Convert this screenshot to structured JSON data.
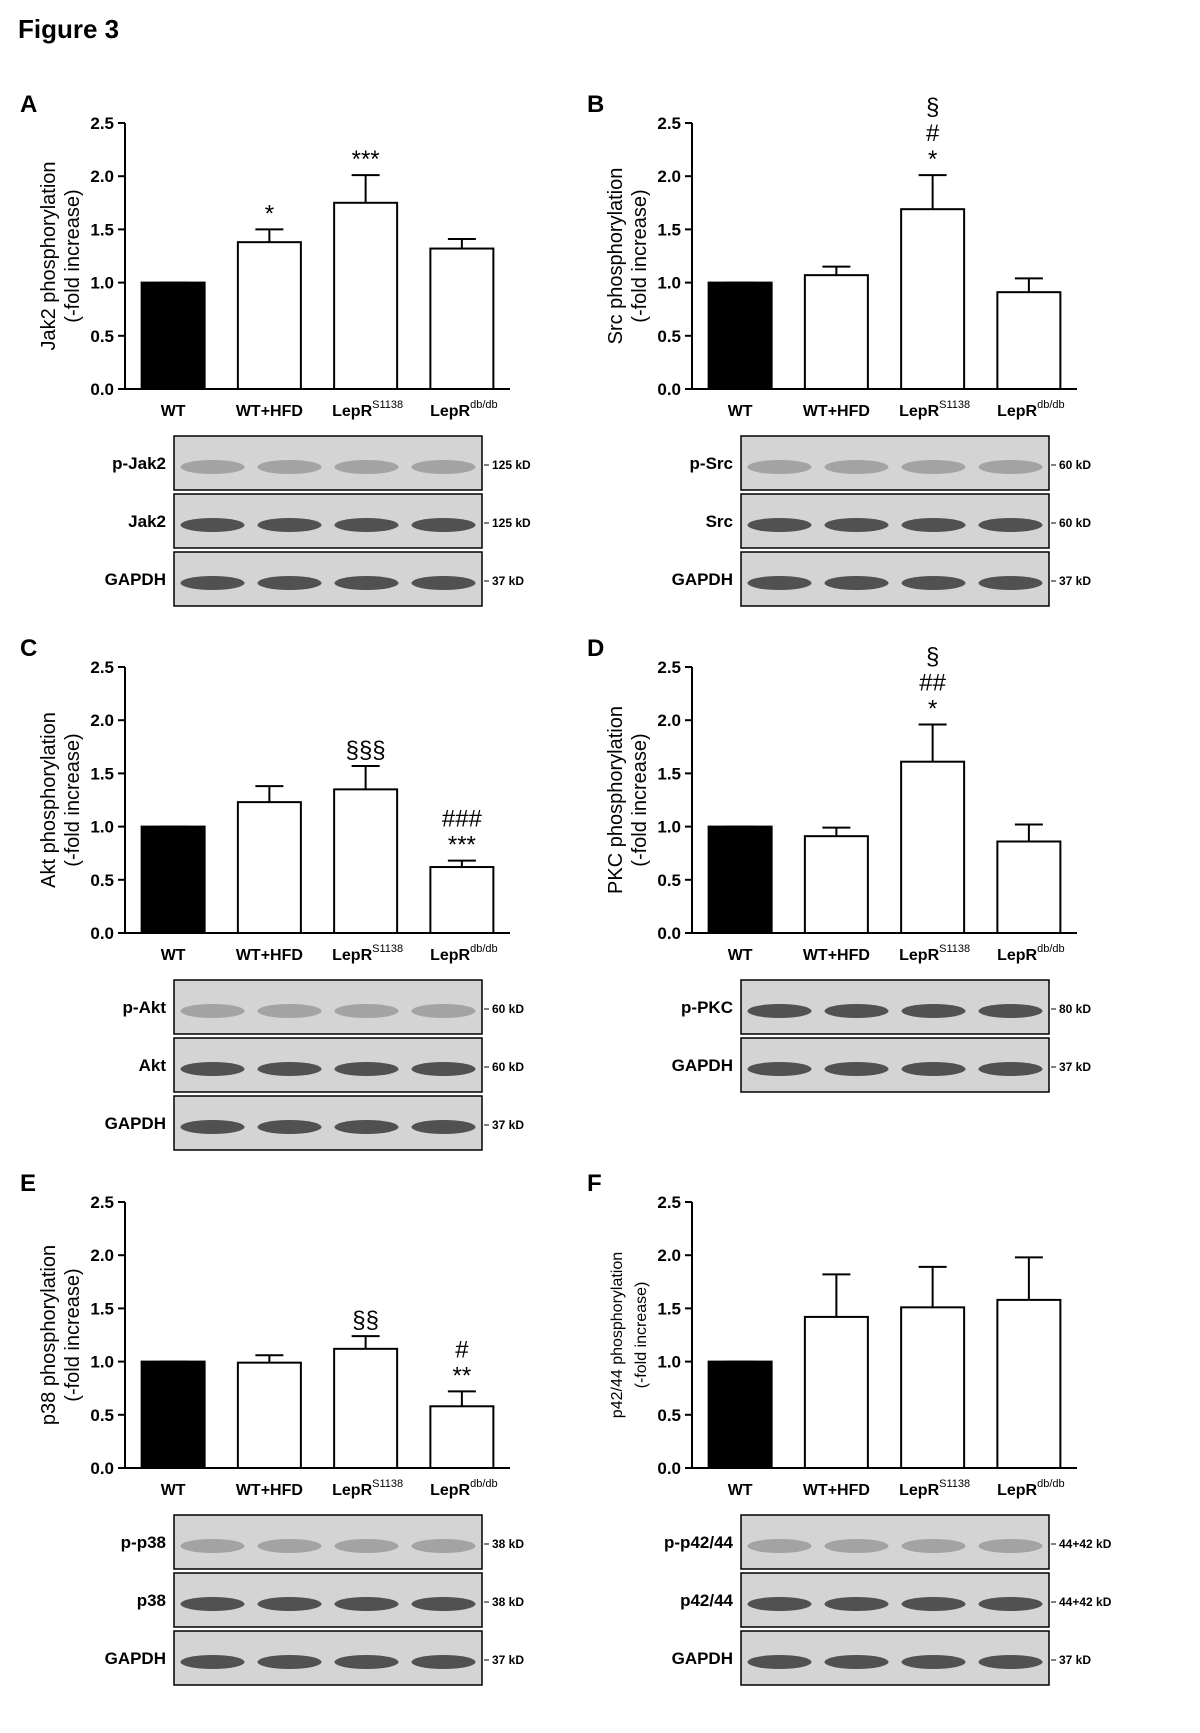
{
  "figure_title": "Figure 3",
  "chart_data": [
    {
      "type": "bar",
      "panel": "A",
      "ylabel": [
        "Jak2 phosphorylation",
        "(-fold increase)"
      ],
      "categories": [
        {
          "label": "WT"
        },
        {
          "label": "WT+HFD"
        },
        {
          "label": "LepR",
          "sup": "S1138"
        },
        {
          "label": "LepR",
          "sup": "db/db"
        }
      ],
      "values": [
        1.0,
        1.38,
        1.75,
        1.32
      ],
      "errors": [
        0,
        0.12,
        0.26,
        0.09
      ],
      "bar_colors": [
        "#000000",
        "#ffffff",
        "#ffffff",
        "#ffffff"
      ],
      "ylim": [
        0,
        2.5
      ],
      "yticks": [
        {
          "value": 0,
          "label": "0.0"
        },
        0.5,
        {
          "value": 1,
          "label": "1.0"
        },
        1.5,
        {
          "value": 2,
          "label": "2.0"
        },
        2.5
      ],
      "annotations": [
        {
          "index": 1,
          "lines": [
            "*"
          ]
        },
        {
          "index": 2,
          "lines": [
            "***"
          ]
        }
      ],
      "blots": [
        {
          "label": "p-Jak2",
          "size": "125 kD"
        },
        {
          "label": "Jak2",
          "size": "125 kD"
        },
        {
          "label": "GAPDH",
          "size": "37 kD"
        }
      ]
    },
    {
      "type": "bar",
      "panel": "B",
      "ylabel": [
        "Src phosphorylation",
        "(-fold increase)"
      ],
      "categories": [
        {
          "label": "WT"
        },
        {
          "label": "WT+HFD"
        },
        {
          "label": "LepR",
          "sup": "S1138"
        },
        {
          "label": "LepR",
          "sup": "db/db"
        }
      ],
      "values": [
        1.0,
        1.07,
        1.69,
        0.91
      ],
      "errors": [
        0,
        0.08,
        0.32,
        0.13
      ],
      "bar_colors": [
        "#000000",
        "#ffffff",
        "#ffffff",
        "#ffffff"
      ],
      "ylim": [
        0,
        2.5
      ],
      "yticks": [
        {
          "value": 0,
          "label": "0.0"
        },
        0.5,
        {
          "value": 1,
          "label": "1.0"
        },
        1.5,
        {
          "value": 2,
          "label": "2.0"
        },
        2.5
      ],
      "annotations": [
        {
          "index": 2,
          "lines": [
            "§",
            "#",
            "*"
          ]
        }
      ],
      "blots": [
        {
          "label": "p-Src",
          "size": "60 kD"
        },
        {
          "label": "Src",
          "size": "60 kD"
        },
        {
          "label": "GAPDH",
          "size": "37 kD"
        }
      ]
    },
    {
      "type": "bar",
      "panel": "C",
      "ylabel": [
        "Akt phosphorylation",
        "(-fold increase)"
      ],
      "categories": [
        {
          "label": "WT"
        },
        {
          "label": "WT+HFD"
        },
        {
          "label": "LepR",
          "sup": "S1138"
        },
        {
          "label": "LepR",
          "sup": "db/db"
        }
      ],
      "values": [
        1.0,
        1.23,
        1.35,
        0.62
      ],
      "errors": [
        0,
        0.15,
        0.22,
        0.06
      ],
      "bar_colors": [
        "#000000",
        "#ffffff",
        "#ffffff",
        "#ffffff"
      ],
      "ylim": [
        0,
        2.5
      ],
      "yticks": [
        {
          "value": 0,
          "label": "0.0"
        },
        0.5,
        {
          "value": 1,
          "label": "1.0"
        },
        1.5,
        {
          "value": 2,
          "label": "2.0"
        },
        2.5
      ],
      "annotations": [
        {
          "index": 2,
          "lines": [
            "§§§"
          ]
        },
        {
          "index": 3,
          "lines": [
            "###",
            "***"
          ]
        }
      ],
      "blots": [
        {
          "label": "p-Akt",
          "size": "60 kD"
        },
        {
          "label": "Akt",
          "size": "60 kD"
        },
        {
          "label": "GAPDH",
          "size": "37 kD"
        }
      ]
    },
    {
      "type": "bar",
      "panel": "D",
      "ylabel": [
        "PKC phosphorylation",
        "(-fold increase)"
      ],
      "categories": [
        {
          "label": "WT"
        },
        {
          "label": "WT+HFD"
        },
        {
          "label": "LepR",
          "sup": "S1138"
        },
        {
          "label": "LepR",
          "sup": "db/db"
        }
      ],
      "values": [
        1.0,
        0.91,
        1.61,
        0.86
      ],
      "errors": [
        0,
        0.08,
        0.35,
        0.16
      ],
      "bar_colors": [
        "#000000",
        "#ffffff",
        "#ffffff",
        "#ffffff"
      ],
      "ylim": [
        0,
        2.5
      ],
      "yticks": [
        {
          "value": 0,
          "label": "0.0"
        },
        0.5,
        {
          "value": 1,
          "label": "1.0"
        },
        1.5,
        {
          "value": 2,
          "label": "2.0"
        },
        2.5
      ],
      "annotations": [
        {
          "index": 2,
          "lines": [
            "§",
            "##",
            "*"
          ]
        }
      ],
      "blots": [
        {
          "label": "p-PKC",
          "size": "80 kD"
        },
        {
          "label": "GAPDH",
          "size": "37 kD"
        }
      ]
    },
    {
      "type": "bar",
      "panel": "E",
      "ylabel": [
        "p38 phosphorylation",
        "(-fold increase)"
      ],
      "categories": [
        {
          "label": "WT"
        },
        {
          "label": "WT+HFD"
        },
        {
          "label": "LepR",
          "sup": "S1138"
        },
        {
          "label": "LepR",
          "sup": "db/db"
        }
      ],
      "values": [
        1.0,
        0.99,
        1.12,
        0.58
      ],
      "errors": [
        0,
        0.07,
        0.12,
        0.14
      ],
      "bar_colors": [
        "#000000",
        "#ffffff",
        "#ffffff",
        "#ffffff"
      ],
      "ylim": [
        0,
        2.5
      ],
      "yticks": [
        {
          "value": 0,
          "label": "0.0"
        },
        0.5,
        {
          "value": 1,
          "label": "1.0"
        },
        1.5,
        {
          "value": 2,
          "label": "2.0"
        },
        2.5
      ],
      "annotations": [
        {
          "index": 2,
          "lines": [
            "§§"
          ]
        },
        {
          "index": 3,
          "lines": [
            "#",
            "**"
          ]
        }
      ],
      "blots": [
        {
          "label": "p-p38",
          "size": "38 kD"
        },
        {
          "label": "p38",
          "size": "38 kD"
        },
        {
          "label": "GAPDH",
          "size": "37 kD"
        }
      ]
    },
    {
      "type": "bar",
      "panel": "F",
      "ylabel": [
        "p42/44 phosphorylation",
        "(-fold increase)"
      ],
      "categories": [
        {
          "label": "WT"
        },
        {
          "label": "WT+HFD"
        },
        {
          "label": "LepR",
          "sup": "S1138"
        },
        {
          "label": "LepR",
          "sup": "db/db"
        }
      ],
      "values": [
        1.0,
        1.42,
        1.51,
        1.58
      ],
      "errors": [
        0,
        0.4,
        0.38,
        0.4
      ],
      "bar_colors": [
        "#000000",
        "#ffffff",
        "#ffffff",
        "#ffffff"
      ],
      "ylim": [
        0,
        2.5
      ],
      "yticks": [
        {
          "value": 0,
          "label": "0.0"
        },
        0.5,
        {
          "value": 1,
          "label": "1.0"
        },
        1.5,
        {
          "value": 2,
          "label": "2.0"
        },
        2.5
      ],
      "annotations": [],
      "blots": [
        {
          "label": "p-p42/44",
          "size": "44+42 kD"
        },
        {
          "label": "p42/44",
          "size": "44+42 kD"
        },
        {
          "label": "GAPDH",
          "size": "37 kD"
        }
      ]
    }
  ]
}
